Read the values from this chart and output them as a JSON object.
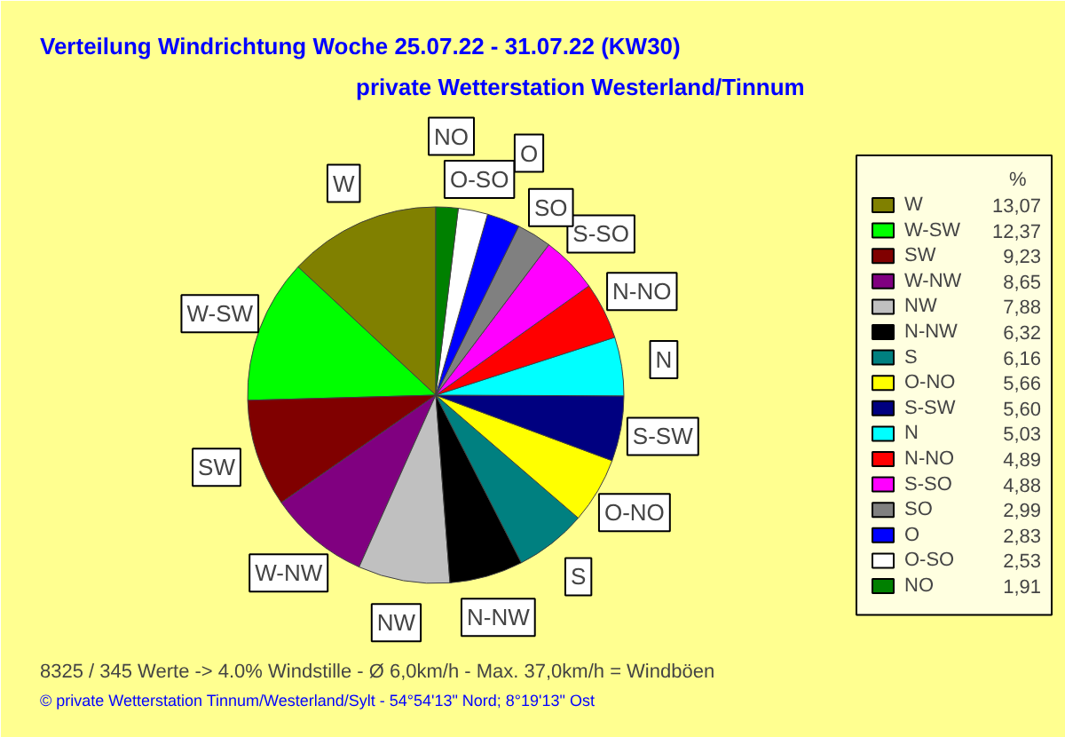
{
  "chart_data": {
    "type": "pie",
    "title": "Verteilung Windrichtung   Woche 25.07.22 - 31.07.22 (KW30)",
    "subtitle": "private Wetterstation Westerland/Tinnum",
    "legend_title": "%",
    "legend": "right",
    "value_labels": [
      "13,07",
      "12,37",
      "9,23",
      "8,65",
      "7,88",
      "6,32",
      "6,16",
      "5,66",
      "5,60",
      "5,03",
      "4,89",
      "4,88",
      "2,99",
      "2,83",
      "2,53",
      "1,91"
    ],
    "categories": [
      "W",
      "W-SW",
      "SW",
      "W-NW",
      "NW",
      "N-NW",
      "S",
      "O-NO",
      "S-SW",
      "N",
      "N-NO",
      "S-SO",
      "SO",
      "O",
      "O-SO",
      "NO"
    ],
    "values": [
      13.07,
      12.37,
      9.23,
      8.65,
      7.88,
      6.32,
      6.16,
      5.66,
      5.6,
      5.03,
      4.89,
      4.88,
      2.99,
      2.83,
      2.53,
      1.91
    ],
    "colors": [
      "#808000",
      "#00ff00",
      "#800000",
      "#800080",
      "#c0c0c0",
      "#000000",
      "#008080",
      "#ffff00",
      "#000080",
      "#00ffff",
      "#ff0000",
      "#ff00ff",
      "#808080",
      "#0000ff",
      "#ffffff",
      "#008000"
    ],
    "annotations": [
      "8325 / 345 Werte  -> 4.0% Windstille   -   Ø 6,0km/h  -  Max. 37,0km/h = Windböen",
      "© private Wetterstation Tinnum/Westerland/Sylt   -   54°54'13\" Nord; 8°19'13\" Ost"
    ]
  }
}
